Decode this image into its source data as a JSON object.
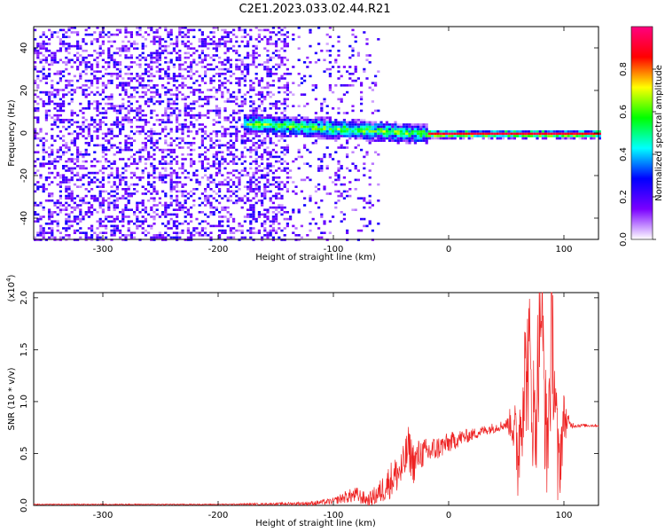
{
  "figure_title": "C2E1.2023.033.02.44.R21",
  "chart_data": [
    {
      "type": "heatmap",
      "xlabel": "Height of straight line (km)",
      "ylabel": "Frequency (Hz)",
      "xlim": [
        -360,
        130
      ],
      "ylim": [
        -50,
        50
      ],
      "xticks": [
        -300,
        -200,
        -100,
        0,
        100
      ],
      "yticks": [
        -40,
        -20,
        0,
        20,
        40
      ],
      "colorbar": {
        "label": "Normalized spectral amplitude",
        "range": [
          0,
          1
        ],
        "ticks": [
          "0.0",
          "0.2",
          "0.4",
          "0.6",
          "0.8"
        ],
        "colors": [
          "#ffffff",
          "#7a00ff",
          "#0000ff",
          "#00ffff",
          "#00ff00",
          "#ffff00",
          "#ff0000",
          "#ff0080"
        ]
      },
      "regions": [
        {
          "name": "noise",
          "x_range": [
            -360,
            -140
          ],
          "freq_range": [
            -50,
            50
          ],
          "amplitude": 0.3
        },
        {
          "name": "sparse noise",
          "x_range": [
            -140,
            -60
          ],
          "freq_range": [
            -50,
            50
          ],
          "amplitude": 0.1
        },
        {
          "name": "signal band",
          "x_range": [
            -180,
            -20
          ],
          "center_freq_hz": [
            5,
            0
          ],
          "amplitude": 0.6
        },
        {
          "name": "steady tone",
          "x_range": [
            -20,
            130
          ],
          "center_freq_hz": 0,
          "amplitude": 0.9
        }
      ]
    },
    {
      "type": "line",
      "xlabel": "Height of straight line (km)",
      "ylabel": "SNR (10 * v/v)",
      "y_scale_label": "(x10",
      "y_scale_exponent": "4",
      "y_scale_close": ")",
      "xlim": [
        -360,
        130
      ],
      "ylim": [
        0,
        2.05
      ],
      "xticks": [
        -300,
        -200,
        -100,
        0,
        100
      ],
      "yticks": [
        "0.0",
        "0.5",
        "1.0",
        "1.5",
        "2.0"
      ],
      "color": "#ee2222",
      "series": [
        {
          "x": [
            -360,
            -300,
            -200,
            -150,
            -120,
            -100,
            -90,
            -80,
            -70,
            -60,
            -50,
            -40,
            -35,
            -30,
            -25,
            -20,
            -10,
            0,
            10,
            20,
            30,
            40,
            50,
            55,
            60,
            65,
            70,
            75,
            80,
            85,
            90,
            95,
            100,
            105,
            110,
            120,
            130
          ],
          "y": [
            0.01,
            0.01,
            0.01,
            0.015,
            0.02,
            0.04,
            0.08,
            0.1,
            0.05,
            0.12,
            0.25,
            0.35,
            0.55,
            0.4,
            0.5,
            0.5,
            0.55,
            0.6,
            0.65,
            0.68,
            0.72,
            0.75,
            0.78,
            0.8,
            0.5,
            1.2,
            1.4,
            0.7,
            2.05,
            0.5,
            1.7,
            0.3,
            0.85,
            0.78,
            0.77,
            0.77,
            0.77
          ],
          "max_spread": [
            0.005,
            0.005,
            0.005,
            0.01,
            0.02,
            0.03,
            0.06,
            0.08,
            0.06,
            0.12,
            0.18,
            0.2,
            0.22,
            0.2,
            0.15,
            0.15,
            0.12,
            0.1,
            0.08,
            0.06,
            0.05,
            0.05,
            0.05,
            0.2,
            0.5,
            0.6,
            0.7,
            0.6,
            0.8,
            0.6,
            0.7,
            0.5,
            0.25,
            0.04,
            0.02,
            0.015,
            0.015
          ]
        }
      ]
    }
  ]
}
